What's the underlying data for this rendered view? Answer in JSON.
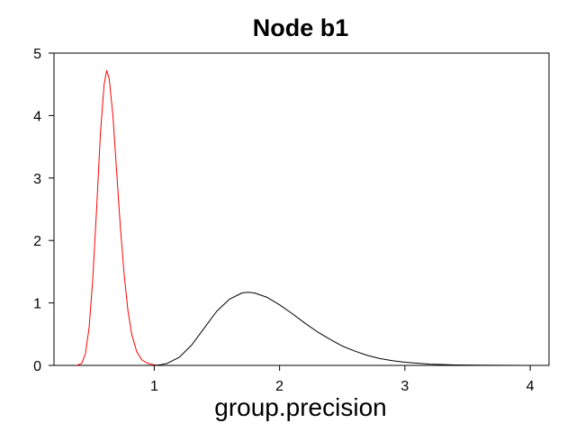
{
  "chart_data": {
    "type": "line",
    "title": "Node b1",
    "xlabel": "group.precision",
    "ylabel": "",
    "xlim": [
      0.2,
      4.15
    ],
    "ylim": [
      0,
      5
    ],
    "xticks": [
      1,
      2,
      3,
      4
    ],
    "yticks": [
      0,
      1,
      2,
      3,
      4,
      5
    ],
    "grid": false,
    "series": [
      {
        "color": "#ff0000",
        "points": [
          [
            0.38,
            0.0
          ],
          [
            0.42,
            0.03
          ],
          [
            0.45,
            0.18
          ],
          [
            0.48,
            0.6
          ],
          [
            0.51,
            1.4
          ],
          [
            0.54,
            2.5
          ],
          [
            0.57,
            3.7
          ],
          [
            0.6,
            4.5
          ],
          [
            0.62,
            4.72
          ],
          [
            0.64,
            4.6
          ],
          [
            0.67,
            4.0
          ],
          [
            0.7,
            3.1
          ],
          [
            0.73,
            2.2
          ],
          [
            0.76,
            1.45
          ],
          [
            0.79,
            0.88
          ],
          [
            0.82,
            0.5
          ],
          [
            0.86,
            0.22
          ],
          [
            0.9,
            0.09
          ],
          [
            0.95,
            0.03
          ],
          [
            1.0,
            0.01
          ],
          [
            1.02,
            0.0
          ]
        ]
      },
      {
        "color": "#000000",
        "points": [
          [
            1.0,
            0.0
          ],
          [
            1.05,
            0.01
          ],
          [
            1.1,
            0.03
          ],
          [
            1.2,
            0.13
          ],
          [
            1.3,
            0.33
          ],
          [
            1.4,
            0.6
          ],
          [
            1.5,
            0.87
          ],
          [
            1.6,
            1.06
          ],
          [
            1.7,
            1.16
          ],
          [
            1.75,
            1.17
          ],
          [
            1.8,
            1.16
          ],
          [
            1.9,
            1.09
          ],
          [
            2.0,
            0.97
          ],
          [
            2.1,
            0.83
          ],
          [
            2.2,
            0.68
          ],
          [
            2.3,
            0.54
          ],
          [
            2.4,
            0.42
          ],
          [
            2.5,
            0.31
          ],
          [
            2.6,
            0.23
          ],
          [
            2.7,
            0.16
          ],
          [
            2.8,
            0.11
          ],
          [
            2.9,
            0.075
          ],
          [
            3.0,
            0.05
          ],
          [
            3.2,
            0.02
          ],
          [
            3.4,
            0.008
          ],
          [
            3.6,
            0.003
          ],
          [
            3.8,
            0.001
          ],
          [
            4.0,
            0.0
          ]
        ]
      }
    ]
  }
}
